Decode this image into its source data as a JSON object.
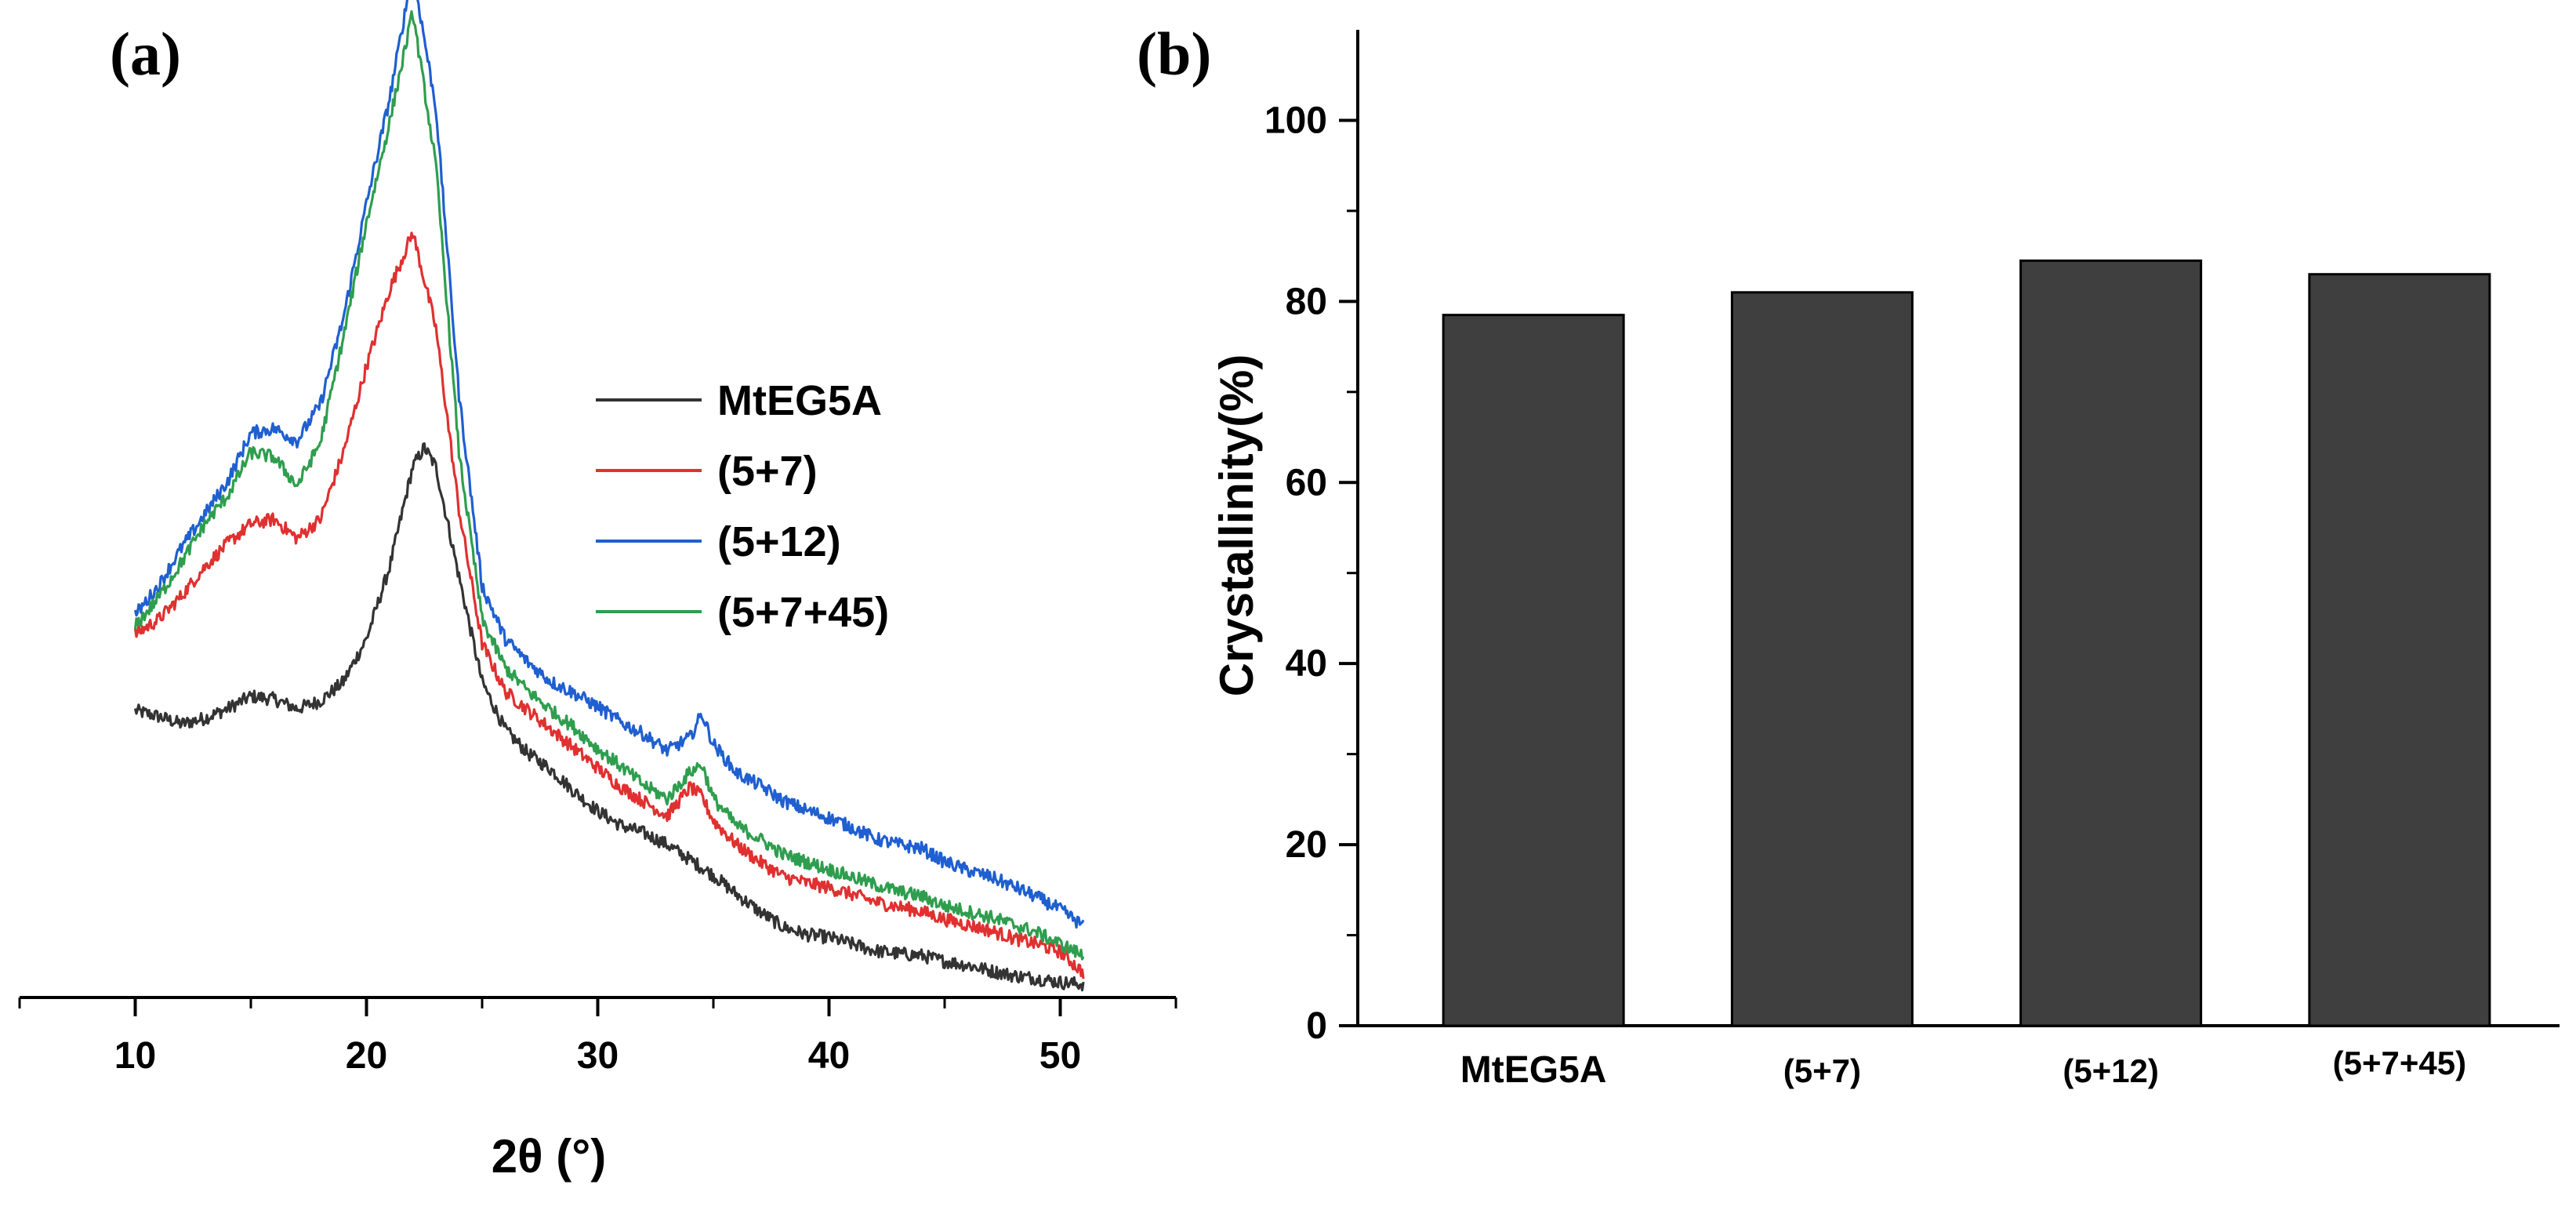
{
  "panels": {
    "a": "(a)",
    "b": "(b)"
  },
  "chart_data": [
    {
      "type": "line",
      "panel": "(a)",
      "title": "",
      "xlabel": "2θ (°)",
      "ylabel": "",
      "xlim": [
        5,
        55
      ],
      "xticks": [
        10,
        20,
        30,
        40,
        50
      ],
      "ylim": [
        0,
        1000
      ],
      "y_axis_shown": false,
      "grid": false,
      "legend_position": "center-right",
      "series": [
        {
          "name": "MtEG5A",
          "color": "#333333",
          "x": [
            10,
            11,
            12,
            13,
            14,
            15,
            16,
            17,
            18,
            19,
            20,
            21,
            22,
            22.5,
            23,
            24,
            25,
            26,
            27,
            28,
            29,
            30,
            31,
            32,
            33,
            34,
            35,
            36,
            37,
            38,
            39,
            40,
            41,
            42,
            43,
            44,
            45,
            46,
            47,
            48,
            49,
            50,
            51
          ],
          "y": [
            290,
            284,
            276,
            282,
            292,
            305,
            302,
            292,
            300,
            320,
            365,
            440,
            545,
            565,
            545,
            430,
            320,
            270,
            245,
            228,
            205,
            185,
            170,
            162,
            150,
            134,
            118,
            98,
            80,
            64,
            56,
            53,
            46,
            39,
            36,
            34,
            28,
            24,
            18,
            13,
            10,
            6,
            4
          ]
        },
        {
          "name": "(5+7)",
          "color": "#e03030",
          "x": [
            10,
            11,
            12,
            13,
            14,
            15,
            16,
            17,
            18,
            19,
            20,
            21,
            22,
            23,
            24,
            25,
            26,
            27,
            28,
            29,
            30,
            31,
            32,
            33,
            34,
            34.5,
            35,
            36,
            37,
            38,
            39,
            40,
            41,
            42,
            43,
            44,
            45,
            46,
            47,
            48,
            49,
            50,
            51
          ],
          "y": [
            370,
            385,
            410,
            440,
            465,
            485,
            490,
            470,
            490,
            560,
            650,
            730,
            790,
            690,
            500,
            360,
            310,
            290,
            270,
            250,
            230,
            210,
            195,
            180,
            210,
            200,
            175,
            150,
            132,
            117,
            110,
            105,
            98,
            90,
            85,
            80,
            72,
            66,
            60,
            52,
            46,
            38,
            16
          ]
        },
        {
          "name": "(5+12)",
          "color": "#1f5fd0",
          "x": [
            10,
            11,
            12,
            13,
            14,
            15,
            16,
            17,
            18,
            19,
            20,
            21,
            22,
            23,
            24,
            25,
            26,
            27,
            28,
            29,
            30,
            31,
            32,
            33,
            34,
            34.5,
            35,
            36,
            37,
            38,
            39,
            40,
            41,
            42,
            43,
            44,
            45,
            46,
            47,
            48,
            49,
            50,
            51
          ],
          "y": [
            390,
            420,
            460,
            495,
            530,
            580,
            585,
            572,
            610,
            700,
            820,
            930,
            1065,
            920,
            620,
            420,
            365,
            340,
            320,
            308,
            294,
            278,
            265,
            248,
            262,
            287,
            255,
            225,
            212,
            196,
            186,
            178,
            168,
            156,
            150,
            146,
            132,
            123,
            116,
            106,
            95,
            82,
            65
          ]
        },
        {
          "name": "(5+7+45)",
          "color": "#2e9e4e",
          "x": [
            10,
            11,
            12,
            13,
            14,
            15,
            16,
            17,
            18,
            19,
            20,
            21,
            22,
            23,
            24,
            25,
            26,
            27,
            28,
            29,
            30,
            31,
            32,
            33,
            34,
            34.5,
            35,
            36,
            37,
            38,
            39,
            40,
            41,
            42,
            43,
            44,
            45,
            46,
            47,
            48,
            49,
            50,
            51
          ],
          "y": [
            378,
            408,
            445,
            485,
            515,
            560,
            555,
            525,
            570,
            680,
            800,
            905,
            1020,
            860,
            560,
            385,
            335,
            310,
            290,
            272,
            250,
            232,
            212,
            198,
            226,
            234,
            198,
            170,
            156,
            140,
            132,
            124,
            116,
            108,
            101,
            96,
            86,
            80,
            74,
            66,
            58,
            46,
            34
          ]
        }
      ]
    },
    {
      "type": "bar",
      "panel": "(b)",
      "title": "",
      "xlabel": "",
      "ylabel": "Crystallinity(%)",
      "ylim": [
        0,
        110
      ],
      "yticks": [
        0,
        20,
        40,
        60,
        80,
        100
      ],
      "grid": false,
      "bar_color": "#3f3f3f",
      "categories": [
        "MtEG5A",
        "(5+7)",
        "(5+12)",
        "(5+7+45)"
      ],
      "values": [
        78.5,
        81.0,
        84.5,
        83.0
      ]
    }
  ]
}
